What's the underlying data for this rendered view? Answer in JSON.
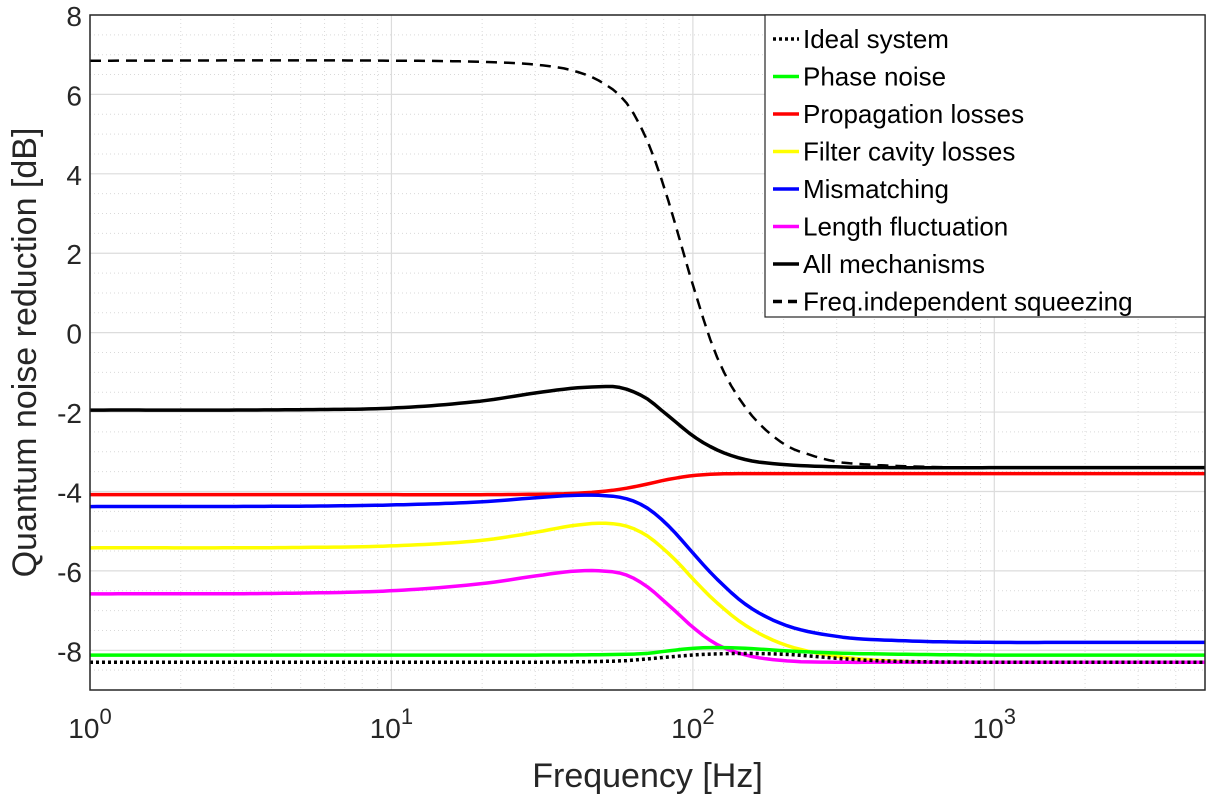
{
  "chart_data": {
    "type": "line",
    "title": "",
    "xlabel": "Frequency [Hz]",
    "ylabel": "Quantum noise reduction [dB]",
    "xscale": "log",
    "xlim": [
      1,
      5000
    ],
    "ylim": [
      -9,
      8
    ],
    "grid": true,
    "minor_grid": true,
    "legend_position": "top-right",
    "x_ticks": [
      1,
      10,
      100,
      1000
    ],
    "x_tick_labels": [
      {
        "base": "10",
        "exp": "0"
      },
      {
        "base": "10",
        "exp": "1"
      },
      {
        "base": "10",
        "exp": "2"
      },
      {
        "base": "10",
        "exp": "3"
      }
    ],
    "y_ticks": [
      -8,
      -6,
      -4,
      -2,
      0,
      2,
      4,
      6,
      8
    ],
    "y_tick_labels": [
      "-8",
      "-6",
      "-4",
      "-2",
      "0",
      "2",
      "4",
      "6",
      "8"
    ],
    "series": [
      {
        "name": "Ideal system",
        "color": "#000000",
        "style": "dotted",
        "x": [
          1,
          10,
          20,
          30,
          40,
          50,
          60,
          70,
          80,
          100,
          120,
          150,
          200,
          250,
          300,
          400,
          600,
          1000,
          2000,
          5000
        ],
        "y": [
          -8.3,
          -8.3,
          -8.3,
          -8.3,
          -8.29,
          -8.28,
          -8.26,
          -8.22,
          -8.18,
          -8.12,
          -8.09,
          -8.08,
          -8.1,
          -8.15,
          -8.2,
          -8.26,
          -8.29,
          -8.3,
          -8.3,
          -8.3
        ]
      },
      {
        "name": "Phase noise",
        "color": "#00ff00",
        "style": "solid",
        "x": [
          1,
          10,
          30,
          50,
          70,
          80,
          100,
          120,
          150,
          200,
          300,
          500,
          1000,
          2000,
          5000
        ],
        "y": [
          -8.12,
          -8.12,
          -8.12,
          -8.11,
          -8.08,
          -8.03,
          -7.95,
          -7.93,
          -7.95,
          -8.01,
          -8.07,
          -8.1,
          -8.12,
          -8.12,
          -8.12
        ]
      },
      {
        "name": "Propagation losses",
        "color": "#ff0000",
        "style": "solid",
        "x": [
          1,
          10,
          20,
          30,
          40,
          50,
          60,
          70,
          80,
          100,
          120,
          150,
          200,
          300,
          500,
          1000,
          5000
        ],
        "y": [
          -4.08,
          -4.08,
          -4.08,
          -4.07,
          -4.05,
          -4.0,
          -3.92,
          -3.82,
          -3.72,
          -3.6,
          -3.56,
          -3.55,
          -3.55,
          -3.55,
          -3.55,
          -3.55,
          -3.55
        ]
      },
      {
        "name": "Filter cavity losses",
        "color": "#ffff00",
        "style": "solid",
        "x": [
          1,
          5,
          10,
          20,
          30,
          40,
          50,
          60,
          70,
          80,
          90,
          100,
          120,
          150,
          200,
          300,
          500,
          1000,
          2000,
          5000
        ],
        "y": [
          -5.42,
          -5.41,
          -5.37,
          -5.23,
          -5.03,
          -4.86,
          -4.8,
          -4.87,
          -5.1,
          -5.45,
          -5.82,
          -6.2,
          -6.8,
          -7.38,
          -7.85,
          -8.15,
          -8.28,
          -8.3,
          -8.3,
          -8.3
        ]
      },
      {
        "name": "Mismatching",
        "color": "#0000ff",
        "style": "solid",
        "x": [
          1,
          5,
          10,
          20,
          30,
          40,
          50,
          60,
          70,
          80,
          90,
          100,
          120,
          150,
          200,
          300,
          500,
          1000,
          2000,
          5000
        ],
        "y": [
          -4.38,
          -4.37,
          -4.34,
          -4.26,
          -4.16,
          -4.1,
          -4.1,
          -4.18,
          -4.4,
          -4.75,
          -5.15,
          -5.55,
          -6.2,
          -6.85,
          -7.35,
          -7.65,
          -7.76,
          -7.8,
          -7.8,
          -7.8
        ]
      },
      {
        "name": "Length fluctuation",
        "color": "#ff00ff",
        "style": "solid",
        "x": [
          1,
          5,
          10,
          20,
          30,
          40,
          50,
          60,
          70,
          80,
          90,
          100,
          120,
          150,
          200,
          300,
          500,
          1000,
          2000,
          5000
        ],
        "y": [
          -6.58,
          -6.56,
          -6.5,
          -6.32,
          -6.13,
          -6.01,
          -6.0,
          -6.1,
          -6.38,
          -6.75,
          -7.1,
          -7.42,
          -7.85,
          -8.12,
          -8.26,
          -8.3,
          -8.3,
          -8.3,
          -8.3,
          -8.3
        ]
      },
      {
        "name": "All mechanisms",
        "color": "#000000",
        "style": "solid",
        "x": [
          1,
          5,
          10,
          20,
          30,
          40,
          50,
          55,
          60,
          70,
          80,
          90,
          100,
          120,
          150,
          200,
          300,
          500,
          1000,
          2000,
          5000
        ],
        "y": [
          -1.95,
          -1.94,
          -1.9,
          -1.72,
          -1.52,
          -1.4,
          -1.36,
          -1.36,
          -1.42,
          -1.65,
          -2.0,
          -2.32,
          -2.6,
          -2.95,
          -3.2,
          -3.32,
          -3.38,
          -3.4,
          -3.4,
          -3.4,
          -3.4
        ]
      },
      {
        "name": "Freq.independent squeezing",
        "color": "#000000",
        "style": "dashed",
        "x": [
          1,
          10,
          20,
          30,
          40,
          50,
          60,
          70,
          80,
          90,
          100,
          120,
          150,
          200,
          250,
          300,
          400,
          600,
          1000,
          5000
        ],
        "y": [
          6.85,
          6.85,
          6.82,
          6.75,
          6.6,
          6.3,
          5.8,
          4.9,
          3.7,
          2.4,
          1.2,
          -0.6,
          -1.9,
          -2.8,
          -3.1,
          -3.25,
          -3.33,
          -3.38,
          -3.4,
          -3.4
        ]
      }
    ]
  }
}
